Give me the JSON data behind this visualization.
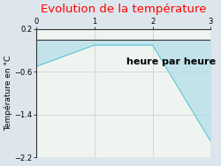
{
  "x_data": [
    0,
    1,
    2,
    3
  ],
  "y_data": [
    -0.5,
    -0.1,
    -0.1,
    -1.9
  ],
  "title": "Evolution de la température",
  "title_color": "#ff0000",
  "ylabel": "Température en °C",
  "xlabel_text": "heure par heure",
  "xlim": [
    0,
    3
  ],
  "ylim": [
    -2.2,
    0.2
  ],
  "yticks": [
    0.2,
    -0.6,
    -1.4,
    -2.2
  ],
  "xticks": [
    0,
    1,
    2,
    3
  ],
  "fill_color": "#b0dde8",
  "fill_alpha": 0.7,
  "line_color": "#5bc8d8",
  "bg_color": "#dce6ec",
  "plot_bg_color": "#f0f4f0",
  "grid_color": "#cccccc",
  "title_fontsize": 9.5,
  "label_fontsize": 6.5,
  "tick_fontsize": 6,
  "xlabel_fontsize": 8
}
